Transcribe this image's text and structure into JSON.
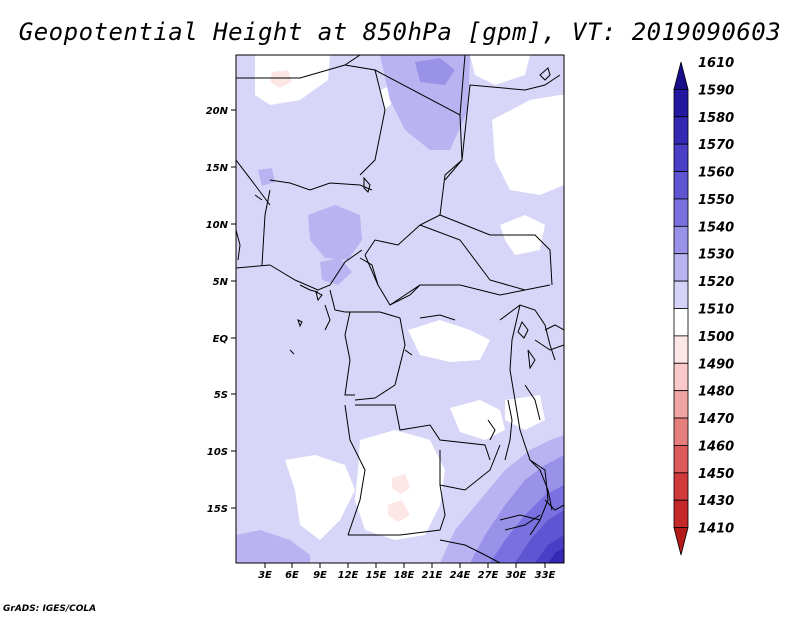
{
  "title": "Geopotential Height at 850hPa [gpm], VT: 2019090603",
  "credit": "GrADS: IGES/COLA",
  "map": {
    "lat_labels": [
      "20N",
      "15N",
      "10N",
      "5N",
      "EQ",
      "5S",
      "10S",
      "15S"
    ],
    "lon_labels": [
      "3E",
      "6E",
      "9E",
      "12E",
      "15E",
      "18E",
      "21E",
      "24E",
      "27E",
      "30E",
      "33E"
    ]
  },
  "colorbar": {
    "levels": [
      "1610",
      "1590",
      "1580",
      "1570",
      "1560",
      "1550",
      "1540",
      "1530",
      "1520",
      "1510",
      "1500",
      "1490",
      "1480",
      "1470",
      "1460",
      "1450",
      "1430",
      "1410"
    ],
    "colors": [
      "#1a0f8a",
      "#2418a0",
      "#3329b5",
      "#4a3ec6",
      "#5f55d2",
      "#7a70df",
      "#9a92e9",
      "#b9b3f1",
      "#d6d3f8",
      "#ffffff",
      "#fde6e6",
      "#f9c8c8",
      "#f0a4a4",
      "#e67e7e",
      "#dc5a5a",
      "#d03a3a",
      "#c42828",
      "#b51a1a"
    ]
  }
}
